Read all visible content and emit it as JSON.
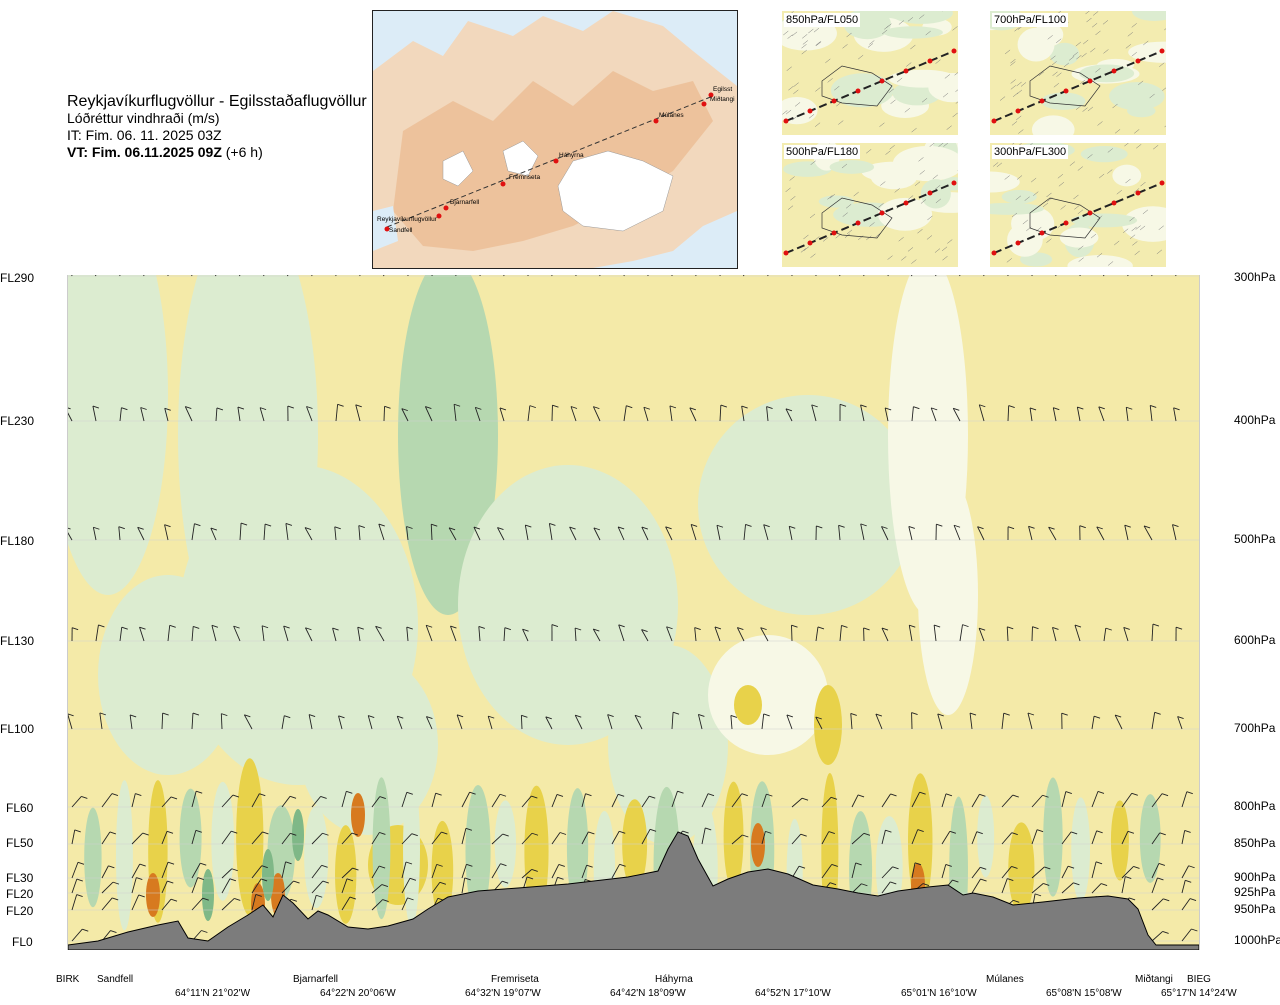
{
  "title": {
    "route": "Reykjavíkurflugvöllur - Egilsstaðaflugvöllur",
    "variable": "Lóðréttur vindhraði (m/s)",
    "it": "IT: Fim. 06. 11. 2025 03Z",
    "vt_bold": "VT: Fim. 06.11.2025 09Z",
    "vt_rest": " (+6 h)"
  },
  "map": {
    "waypoints": [
      "Reykjavíkurflugvöllur",
      "Sandfell",
      "Bjarnarfell",
      "Fremriseta",
      "Háhyrna",
      "Múlanes",
      "Egilsst",
      "Miðtangi"
    ]
  },
  "mini_maps": [
    "850hPa/FL050",
    "700hPa/FL100",
    "500hPa/FL180",
    "300hPa/FL300"
  ],
  "chart_data": {
    "type": "heatmap",
    "title": "Lóðréttur vindhraði (m/s)",
    "y_left_labels": [
      "FL290",
      "FL230",
      "FL180",
      "FL130",
      "FL100",
      "FL60",
      "FL50",
      "FL30",
      "FL20",
      "FL20",
      "FL0"
    ],
    "y_right_labels": [
      "300hPa",
      "400hPa",
      "500hPa",
      "600hPa",
      "700hPa",
      "800hPa",
      "850hPa",
      "900hPa",
      "925hPa",
      "950hPa",
      "1000hPa"
    ],
    "x_point_labels": [
      "BIRK",
      "Sandfell",
      "Bjarnarfell",
      "Fremriseta",
      "Háhyrna",
      "Múlanes",
      "Miðtangi",
      "BIEG"
    ],
    "x_coord_labels": [
      "64°11'N 21°02'W",
      "64°22'N 20°06'W",
      "64°32'N 19°07'W",
      "64°42'N 18°09'W",
      "64°52'N 17°10'W",
      "65°01'N 16°10'W",
      "65°08'N 15°08'W",
      "65°17'N 14°24'W"
    ],
    "colors": {
      "background": "#f4eaa8",
      "updraft_light": "#dcecd0",
      "updraft_mid": "#b6d8b0",
      "updraft_strong": "#7fb887",
      "neutral": "#f7f8e6",
      "downdraft": "#e8d24a",
      "downdraft_strong": "#d77a1f",
      "terrain": "#7c7c7c"
    }
  }
}
